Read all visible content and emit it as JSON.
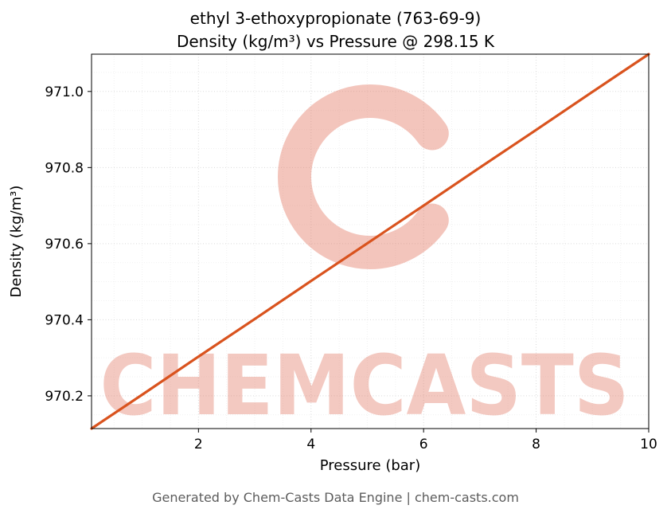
{
  "chart_data": {
    "type": "line",
    "title_line1": "ethyl 3-ethoxypropionate (763-69-9)",
    "title_line2": "Density (kg/m³) vs Pressure @ 298.15 K",
    "xlabel": "Pressure (bar)",
    "ylabel": "Density (kg/m³)",
    "xlim": [
      0.1,
      10
    ],
    "ylim": [
      970.114,
      971.098
    ],
    "x_ticks": [
      2,
      4,
      6,
      8,
      10
    ],
    "y_ticks": [
      970.2,
      970.4,
      970.6,
      970.8,
      971.0
    ],
    "grid": true,
    "legend": "none",
    "line_color": "#d9531e",
    "series": [
      {
        "name": "Density vs Pressure @ 298.15 K",
        "x": [
          0.1,
          1,
          2,
          3,
          4,
          5,
          6,
          7,
          8,
          9,
          10
        ],
        "y": [
          970.114,
          970.203,
          970.303,
          970.402,
          970.502,
          970.601,
          970.7,
          970.8,
          970.899,
          970.999,
          971.098
        ]
      }
    ],
    "watermark": {
      "text": "CHEMCASTS",
      "color": "#e2745f"
    }
  },
  "footer": {
    "text": "Generated by Chem-Casts Data Engine | chem-casts.com"
  }
}
